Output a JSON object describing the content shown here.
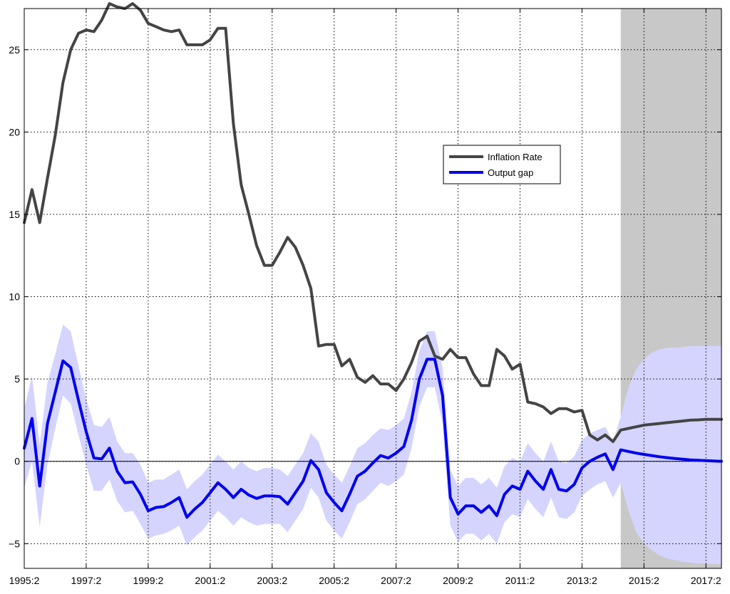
{
  "chart_data": {
    "type": "line",
    "title": "",
    "xlabel": "",
    "ylabel": "",
    "xlim": [
      1995.25,
      2017.75
    ],
    "ylim": [
      -6.5,
      27.5
    ],
    "grid": true,
    "legend_position": "center-right",
    "x_ticks": [
      {
        "value": 1995.25,
        "label": "1995:2"
      },
      {
        "value": 1997.25,
        "label": "1997:2"
      },
      {
        "value": 1999.25,
        "label": "1999:2"
      },
      {
        "value": 2001.25,
        "label": "2001:2"
      },
      {
        "value": 2003.25,
        "label": "2003:2"
      },
      {
        "value": 2005.25,
        "label": "2005:2"
      },
      {
        "value": 2007.25,
        "label": "2007:2"
      },
      {
        "value": 2009.25,
        "label": "2009:2"
      },
      {
        "value": 2011.25,
        "label": "2011:2"
      },
      {
        "value": 2013.25,
        "label": "2013:2"
      },
      {
        "value": 2015.25,
        "label": "2015:2"
      },
      {
        "value": 2017.25,
        "label": "2017:2"
      }
    ],
    "y_ticks": [
      {
        "value": -5,
        "label": "−5"
      },
      {
        "value": 0,
        "label": "0"
      },
      {
        "value": 5,
        "label": "5"
      },
      {
        "value": 10,
        "label": "10"
      },
      {
        "value": 15,
        "label": "15"
      },
      {
        "value": 20,
        "label": "20"
      },
      {
        "value": 25,
        "label": "25"
      }
    ],
    "forecast_region": {
      "start": 2014.5,
      "end": 2017.75,
      "color": "#c8c8c8"
    },
    "series": [
      {
        "name": "Inflation Rate",
        "color": "#444444",
        "points": [
          [
            1995.25,
            14.5
          ],
          [
            1995.5,
            16.5
          ],
          [
            1995.75,
            14.5
          ],
          [
            1996.0,
            17.2
          ],
          [
            1996.25,
            19.8
          ],
          [
            1996.5,
            23.0
          ],
          [
            1996.75,
            25.0
          ],
          [
            1997.0,
            26.0
          ],
          [
            1997.25,
            26.2
          ],
          [
            1997.5,
            26.1
          ],
          [
            1997.75,
            26.8
          ],
          [
            1998.0,
            27.8
          ],
          [
            1998.25,
            27.6
          ],
          [
            1998.5,
            27.5
          ],
          [
            1998.75,
            27.8
          ],
          [
            1999.0,
            27.4
          ],
          [
            1999.25,
            26.6
          ],
          [
            1999.5,
            26.4
          ],
          [
            1999.75,
            26.2
          ],
          [
            2000.0,
            26.1
          ],
          [
            2000.25,
            26.2
          ],
          [
            2000.5,
            25.3
          ],
          [
            2000.75,
            25.3
          ],
          [
            2001.0,
            25.3
          ],
          [
            2001.25,
            25.6
          ],
          [
            2001.5,
            26.3
          ],
          [
            2001.75,
            26.3
          ],
          [
            2002.0,
            20.5
          ],
          [
            2002.25,
            16.8
          ],
          [
            2002.5,
            15.0
          ],
          [
            2002.75,
            13.1
          ],
          [
            2003.0,
            11.9
          ],
          [
            2003.25,
            11.9
          ],
          [
            2003.5,
            12.7
          ],
          [
            2003.75,
            13.6
          ],
          [
            2004.0,
            13.0
          ],
          [
            2004.25,
            11.9
          ],
          [
            2004.5,
            10.5
          ],
          [
            2004.75,
            7.0
          ],
          [
            2005.0,
            7.1
          ],
          [
            2005.25,
            7.1
          ],
          [
            2005.5,
            5.8
          ],
          [
            2005.75,
            6.2
          ],
          [
            2006.0,
            5.1
          ],
          [
            2006.25,
            4.8
          ],
          [
            2006.5,
            5.2
          ],
          [
            2006.75,
            4.7
          ],
          [
            2007.0,
            4.7
          ],
          [
            2007.25,
            4.3
          ],
          [
            2007.5,
            5.0
          ],
          [
            2007.75,
            6.0
          ],
          [
            2008.0,
            7.3
          ],
          [
            2008.25,
            7.6
          ],
          [
            2008.5,
            6.4
          ],
          [
            2008.75,
            6.2
          ],
          [
            2009.0,
            6.8
          ],
          [
            2009.25,
            6.3
          ],
          [
            2009.5,
            6.3
          ],
          [
            2009.75,
            5.3
          ],
          [
            2010.0,
            4.6
          ],
          [
            2010.25,
            4.6
          ],
          [
            2010.5,
            6.8
          ],
          [
            2010.75,
            6.4
          ],
          [
            2011.0,
            5.6
          ],
          [
            2011.25,
            5.9
          ],
          [
            2011.5,
            3.6
          ],
          [
            2011.75,
            3.5
          ],
          [
            2012.0,
            3.3
          ],
          [
            2012.25,
            2.9
          ],
          [
            2012.5,
            3.2
          ],
          [
            2012.75,
            3.2
          ],
          [
            2013.0,
            3.0
          ],
          [
            2013.25,
            3.1
          ],
          [
            2013.5,
            1.6
          ],
          [
            2013.75,
            1.3
          ],
          [
            2014.0,
            1.6
          ],
          [
            2014.25,
            1.2
          ],
          [
            2014.5,
            1.9
          ],
          [
            2014.75,
            2.0
          ],
          [
            2015.0,
            2.1
          ],
          [
            2015.25,
            2.2
          ],
          [
            2015.5,
            2.25
          ],
          [
            2015.75,
            2.3
          ],
          [
            2016.0,
            2.35
          ],
          [
            2016.25,
            2.4
          ],
          [
            2016.5,
            2.45
          ],
          [
            2016.75,
            2.5
          ],
          [
            2017.0,
            2.52
          ],
          [
            2017.25,
            2.55
          ],
          [
            2017.5,
            2.55
          ],
          [
            2017.75,
            2.55
          ]
        ]
      },
      {
        "name": "Output gap",
        "color": "#0000ee",
        "band_color": "#d4d4ff",
        "points": [
          [
            1995.25,
            0.8,
            -1.6,
            3.2
          ],
          [
            1995.5,
            2.6,
            0.0,
            5.2
          ],
          [
            1995.75,
            -1.5,
            -4.0,
            1.0
          ],
          [
            1996.0,
            2.3,
            -0.2,
            4.8
          ],
          [
            1996.25,
            4.2,
            2.0,
            6.5
          ],
          [
            1996.5,
            6.1,
            4.0,
            8.3
          ],
          [
            1996.75,
            5.7,
            3.5,
            7.9
          ],
          [
            1997.0,
            3.7,
            1.6,
            5.8
          ],
          [
            1997.25,
            1.8,
            -0.2,
            3.8
          ],
          [
            1997.5,
            0.2,
            -1.8,
            2.2
          ],
          [
            1997.75,
            0.15,
            -1.8,
            2.1
          ],
          [
            1998.0,
            0.8,
            -1.1,
            2.7
          ],
          [
            1998.25,
            -0.6,
            -2.4,
            1.2
          ],
          [
            1998.5,
            -1.3,
            -3.1,
            0.5
          ],
          [
            1998.75,
            -1.25,
            -3.0,
            0.5
          ],
          [
            1999.0,
            -2.0,
            -3.8,
            -0.2
          ],
          [
            1999.25,
            -3.0,
            -4.7,
            -1.3
          ],
          [
            1999.5,
            -2.8,
            -4.5,
            -1.1
          ],
          [
            1999.75,
            -2.75,
            -4.4,
            -1.1
          ],
          [
            2000.0,
            -2.5,
            -4.2,
            -0.8
          ],
          [
            2000.25,
            -2.2,
            -3.9,
            -0.5
          ],
          [
            2000.5,
            -3.4,
            -5.1,
            -1.7
          ],
          [
            2000.75,
            -2.9,
            -4.6,
            -1.2
          ],
          [
            2001.0,
            -2.5,
            -4.2,
            -0.8
          ],
          [
            2001.25,
            -1.9,
            -3.6,
            -0.2
          ],
          [
            2001.5,
            -1.3,
            -3.0,
            0.4
          ],
          [
            2001.75,
            -1.7,
            -3.4,
            0.0
          ],
          [
            2002.0,
            -2.2,
            -3.9,
            -0.5
          ],
          [
            2002.25,
            -1.7,
            -3.4,
            0.0
          ],
          [
            2002.5,
            -2.05,
            -3.7,
            -0.4
          ],
          [
            2002.75,
            -2.25,
            -3.9,
            -0.6
          ],
          [
            2003.0,
            -2.1,
            -3.8,
            -0.4
          ],
          [
            2003.25,
            -2.1,
            -3.8,
            -0.4
          ],
          [
            2003.5,
            -2.15,
            -3.8,
            -0.5
          ],
          [
            2003.75,
            -2.6,
            -4.3,
            -0.9
          ],
          [
            2004.0,
            -1.9,
            -3.6,
            -0.2
          ],
          [
            2004.25,
            -1.2,
            -2.9,
            0.5
          ],
          [
            2004.5,
            0.05,
            -1.6,
            1.7
          ],
          [
            2004.75,
            -0.5,
            -2.2,
            1.2
          ],
          [
            2005.0,
            -1.9,
            -3.6,
            -0.2
          ],
          [
            2005.25,
            -2.5,
            -4.2,
            -0.8
          ],
          [
            2005.5,
            -3.0,
            -4.7,
            -1.3
          ],
          [
            2005.75,
            -2.0,
            -3.7,
            -0.3
          ],
          [
            2006.0,
            -0.9,
            -2.6,
            0.8
          ],
          [
            2006.25,
            -0.6,
            -2.3,
            1.1
          ],
          [
            2006.5,
            -0.1,
            -1.8,
            1.6
          ],
          [
            2006.75,
            0.35,
            -1.3,
            2.0
          ],
          [
            2007.0,
            0.2,
            -1.5,
            1.9
          ],
          [
            2007.25,
            0.5,
            -1.2,
            2.2
          ],
          [
            2007.5,
            0.9,
            -0.8,
            2.6
          ],
          [
            2007.75,
            2.5,
            0.8,
            4.2
          ],
          [
            2008.0,
            5.0,
            3.3,
            6.7
          ],
          [
            2008.25,
            6.2,
            4.5,
            7.9
          ],
          [
            2008.5,
            6.2,
            4.5,
            7.9
          ],
          [
            2008.75,
            4.0,
            2.3,
            5.7
          ],
          [
            2009.0,
            -2.2,
            -3.9,
            -0.5
          ],
          [
            2009.25,
            -3.2,
            -4.9,
            -1.5
          ],
          [
            2009.5,
            -2.7,
            -4.4,
            -1.0
          ],
          [
            2009.75,
            -2.7,
            -4.4,
            -1.0
          ],
          [
            2010.0,
            -3.1,
            -4.8,
            -1.4
          ],
          [
            2010.25,
            -2.7,
            -4.4,
            -1.0
          ],
          [
            2010.5,
            -3.3,
            -5.0,
            -1.6
          ],
          [
            2010.75,
            -2.0,
            -3.7,
            -0.3
          ],
          [
            2011.0,
            -1.5,
            -3.2,
            0.2
          ],
          [
            2011.25,
            -1.7,
            -3.4,
            0.0
          ],
          [
            2011.5,
            -0.6,
            -2.3,
            1.1
          ],
          [
            2011.75,
            -1.2,
            -2.9,
            0.5
          ],
          [
            2012.0,
            -1.7,
            -3.4,
            0.0
          ],
          [
            2012.25,
            -0.5,
            -2.2,
            1.2
          ],
          [
            2012.5,
            -1.7,
            -3.4,
            0.0
          ],
          [
            2012.75,
            -1.8,
            -3.5,
            -0.1
          ],
          [
            2013.0,
            -1.4,
            -3.1,
            0.3
          ],
          [
            2013.25,
            -0.4,
            -2.1,
            1.3
          ],
          [
            2013.5,
            0.0,
            -1.7,
            1.7
          ],
          [
            2013.75,
            0.25,
            -1.4,
            1.9
          ],
          [
            2014.0,
            0.45,
            -1.2,
            2.1
          ],
          [
            2014.25,
            -0.5,
            -2.2,
            1.2
          ],
          [
            2014.5,
            0.7,
            -1.3,
            2.7
          ],
          [
            2014.75,
            0.6,
            -3.0,
            4.5
          ],
          [
            2015.0,
            0.5,
            -4.3,
            5.6
          ],
          [
            2015.25,
            0.42,
            -5.0,
            6.2
          ],
          [
            2015.5,
            0.35,
            -5.4,
            6.6
          ],
          [
            2015.75,
            0.28,
            -5.7,
            6.8
          ],
          [
            2016.0,
            0.22,
            -5.9,
            6.9
          ],
          [
            2016.25,
            0.17,
            -6.0,
            6.9
          ],
          [
            2016.5,
            0.13,
            -6.1,
            6.95
          ],
          [
            2016.75,
            0.09,
            -6.15,
            7.0
          ],
          [
            2017.0,
            0.06,
            -6.2,
            7.0
          ],
          [
            2017.25,
            0.04,
            -6.2,
            7.0
          ],
          [
            2017.5,
            0.02,
            -6.25,
            7.0
          ],
          [
            2017.75,
            0.0,
            -6.25,
            7.0
          ]
        ]
      }
    ]
  }
}
